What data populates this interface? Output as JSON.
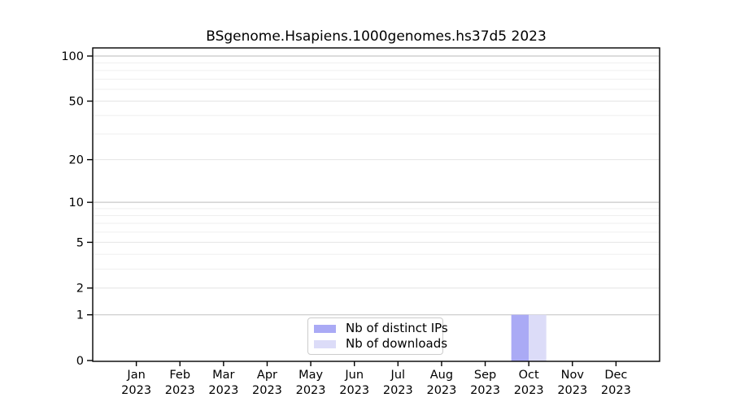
{
  "chart_data": {
    "type": "bar",
    "title": "BSgenome.Hsapiens.1000genomes.hs37d5 2023",
    "categories": [
      {
        "month": "Jan",
        "year": "2023"
      },
      {
        "month": "Feb",
        "year": "2023"
      },
      {
        "month": "Mar",
        "year": "2023"
      },
      {
        "month": "Apr",
        "year": "2023"
      },
      {
        "month": "May",
        "year": "2023"
      },
      {
        "month": "Jun",
        "year": "2023"
      },
      {
        "month": "Jul",
        "year": "2023"
      },
      {
        "month": "Aug",
        "year": "2023"
      },
      {
        "month": "Sep",
        "year": "2023"
      },
      {
        "month": "Oct",
        "year": "2023"
      },
      {
        "month": "Nov",
        "year": "2023"
      },
      {
        "month": "Dec",
        "year": "2023"
      }
    ],
    "series": [
      {
        "name": "Nb of distinct IPs",
        "color": "#aaaaf5",
        "values": [
          0,
          0,
          0,
          0,
          0,
          0,
          0,
          0,
          0,
          1,
          0,
          0
        ]
      },
      {
        "name": "Nb of downloads",
        "color": "#dcdcf8",
        "values": [
          0,
          0,
          0,
          0,
          0,
          0,
          0,
          0,
          0,
          1,
          0,
          0
        ]
      }
    ],
    "y_axis": {
      "scale": "log1p",
      "range": [
        0,
        100
      ],
      "tick_values": [
        0,
        1,
        2,
        5,
        10,
        20,
        50,
        100
      ],
      "gridline_values": [
        1,
        2,
        3,
        4,
        5,
        6,
        7,
        8,
        9,
        10,
        20,
        30,
        40,
        50,
        60,
        70,
        80,
        90,
        100
      ],
      "emphasized_gridlines": [
        1,
        10,
        100
      ]
    },
    "legend": {
      "position": "bottom-center"
    },
    "colors": {
      "axis": "#000000",
      "grid_emphasized": "#c8c8c8",
      "grid_labeled": "#e4e4e4",
      "grid_minor": "#efefef",
      "legend_border": "#cccccc",
      "background": "#ffffff"
    }
  }
}
